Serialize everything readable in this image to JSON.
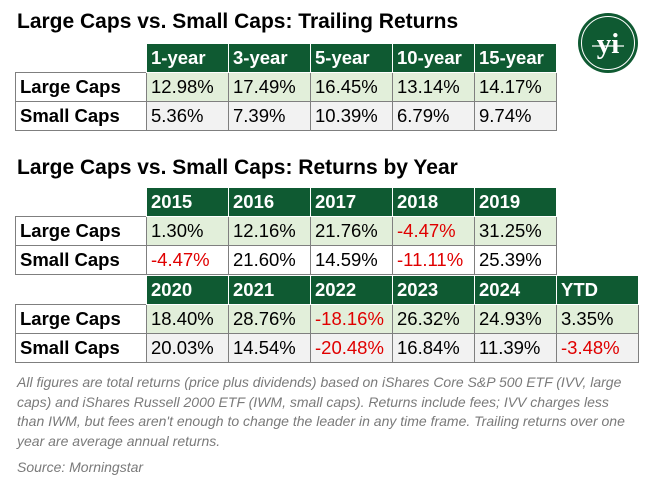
{
  "title1": "Large Caps vs. Small Caps: Trailing Returns",
  "title2": "Large Caps vs. Small Caps: Returns by Year",
  "logo": {
    "icon": "yi-logo-icon",
    "text": "yi",
    "color": "#0f5a32"
  },
  "colors": {
    "header_bg": "#0f5a32",
    "large_row_bg": "#e2efda",
    "small_row_bg": "#f2f2f2",
    "negative": "#e00000"
  },
  "chart_data": [
    {
      "type": "table",
      "title": "Large Caps vs. Small Caps: Trailing Returns",
      "columns": [
        "1-year",
        "3-year",
        "5-year",
        "10-year",
        "15-year"
      ],
      "rows": [
        {
          "name": "Large Caps",
          "values": [
            "12.98%",
            "17.49%",
            "16.45%",
            "13.14%",
            "14.17%"
          ]
        },
        {
          "name": "Small Caps",
          "values": [
            "5.36%",
            "7.39%",
            "10.39%",
            "6.79%",
            "9.74%"
          ]
        }
      ]
    },
    {
      "type": "table",
      "title": "Large Caps vs. Small Caps: Returns by Year",
      "columns": [
        "2015",
        "2016",
        "2017",
        "2018",
        "2019"
      ],
      "rows": [
        {
          "name": "Large Caps",
          "values": [
            "1.30%",
            "12.16%",
            "21.76%",
            "-4.47%",
            "31.25%"
          ]
        },
        {
          "name": "Small Caps",
          "values": [
            "-4.47%",
            "21.60%",
            "14.59%",
            "-11.11%",
            "25.39%"
          ]
        }
      ]
    },
    {
      "type": "table",
      "title": "",
      "columns": [
        "2020",
        "2021",
        "2022",
        "2023",
        "2024",
        "YTD"
      ],
      "rows": [
        {
          "name": "Large Caps",
          "values": [
            "18.40%",
            "28.76%",
            "-18.16%",
            "26.32%",
            "24.93%",
            "3.35%"
          ]
        },
        {
          "name": "Small Caps",
          "values": [
            "20.03%",
            "14.54%",
            "-20.48%",
            "16.84%",
            "11.39%",
            "-3.48%"
          ]
        }
      ]
    }
  ],
  "footnote": "All figures are total returns (price plus dividends) based on iShares Core S&P 500 ETF (IVV, large caps) and iShares Russell 2000 ETF (IWM, small caps). Returns include fees; IVV charges less than IWM, but fees aren't enough to change the leader in any time frame. Trailing returns over one year are average annual returns.",
  "source": "Source: Morningstar"
}
